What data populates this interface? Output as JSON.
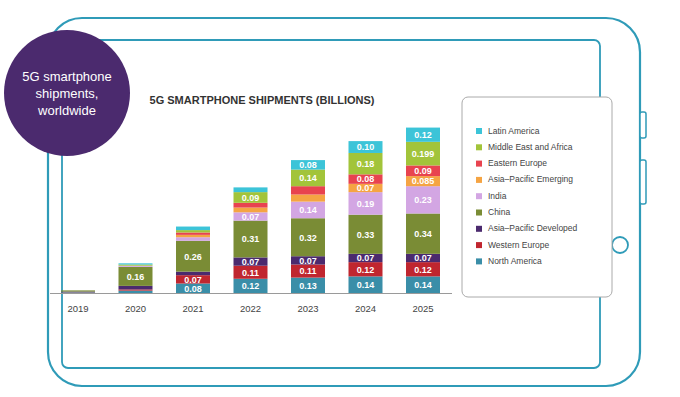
{
  "chart_data": {
    "type": "bar",
    "stacked": true,
    "data_labels": true,
    "legend": "right",
    "tick_labels": "x",
    "grid": false,
    "title": "5G SMARTPHONE SHIPMENTS (BILLIONS)",
    "subtitle": "5G smartphone shipments, worldwide",
    "categories": [
      "2019",
      "2020",
      "2021",
      "2022",
      "2023",
      "2024",
      "2025"
    ],
    "ylim": [
      0,
      1.5
    ],
    "series": [
      {
        "name": "North America",
        "color": "#3a8ea8",
        "values": [
          0.005,
          0.02,
          0.08,
          0.12,
          0.13,
          0.14,
          0.14
        ],
        "value_labels": [
          null,
          null,
          "0.08",
          "0.12",
          "0.13",
          "0.14",
          "0.14"
        ]
      },
      {
        "name": "Western Europe",
        "color": "#c0262f",
        "values": [
          0.002,
          0.01,
          0.07,
          0.11,
          0.11,
          0.12,
          0.12
        ],
        "value_labels": [
          null,
          null,
          "0.07",
          "0.11",
          "0.11",
          "0.12",
          "0.12"
        ]
      },
      {
        "name": "Asia–Pacific Developed",
        "color": "#4b2a6e",
        "values": [
          0.005,
          0.03,
          0.03,
          0.07,
          0.07,
          0.07,
          0.07
        ],
        "value_labels": [
          null,
          null,
          null,
          "0.07",
          "0.07",
          "0.07",
          "0.07"
        ]
      },
      {
        "name": "China",
        "color": "#7a8c35",
        "values": [
          0.01,
          0.16,
          0.26,
          0.31,
          0.32,
          0.33,
          0.34
        ],
        "value_labels": [
          null,
          "0.16",
          "0.26",
          "0.31",
          "0.32",
          "0.33",
          "0.34"
        ]
      },
      {
        "name": "India",
        "color": "#d3a6e3",
        "values": [
          0,
          0.01,
          0.03,
          0.07,
          0.14,
          0.19,
          0.23
        ],
        "value_labels": [
          null,
          null,
          null,
          "0.07",
          "0.14",
          "0.19",
          "0.23"
        ]
      },
      {
        "name": "Asia–Pacific Emerging",
        "color": "#f5a443",
        "values": [
          0,
          0,
          0.02,
          0.04,
          0.06,
          0.07,
          0.085
        ],
        "value_labels": [
          null,
          null,
          null,
          null,
          null,
          "0.07",
          "0.085"
        ]
      },
      {
        "name": "Eastern Europe",
        "color": "#e8434f",
        "values": [
          0,
          0,
          0.02,
          0.04,
          0.07,
          0.08,
          0.09
        ],
        "value_labels": [
          null,
          null,
          null,
          null,
          null,
          "0.08",
          "0.09"
        ]
      },
      {
        "name": "Middle East and Africa",
        "color": "#a2c43a",
        "values": [
          0,
          0.01,
          0.02,
          0.09,
          0.14,
          0.18,
          0.199
        ],
        "value_labels": [
          null,
          null,
          null,
          "0.09",
          "0.14",
          "0.18",
          "0.199"
        ]
      },
      {
        "name": "Latin America",
        "color": "#3cc4d8",
        "values": [
          0,
          0.01,
          0.03,
          0.04,
          0.08,
          0.1,
          0.12
        ],
        "value_labels": [
          null,
          null,
          null,
          null,
          "0.08",
          "0.10",
          "0.12"
        ]
      }
    ]
  }
}
